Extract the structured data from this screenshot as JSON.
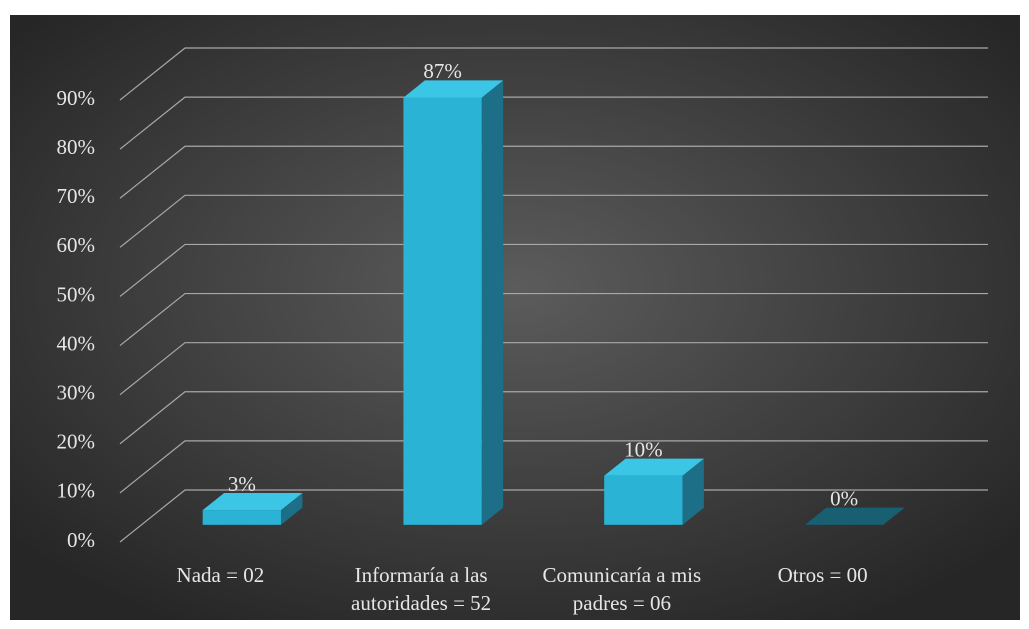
{
  "chart_data": {
    "type": "bar3d",
    "categories": [
      "Nada = 02",
      "Informaría a las autoridades = 52",
      "Comunicaría a mis padres = 06",
      "Otros = 00"
    ],
    "values": [
      3,
      87,
      10,
      0
    ],
    "value_labels": [
      "3%",
      "87%",
      "10%",
      "0%"
    ],
    "color": "#2bb3d6",
    "ylim": [
      0,
      90
    ],
    "yticks": [
      {
        "value": 0,
        "label": "0%"
      },
      {
        "value": 10,
        "label": "10%"
      },
      {
        "value": 20,
        "label": "20%"
      },
      {
        "value": 30,
        "label": "30%"
      },
      {
        "value": 40,
        "label": "40%"
      },
      {
        "value": 50,
        "label": "50%"
      },
      {
        "value": 60,
        "label": "60%"
      },
      {
        "value": 70,
        "label": "70%"
      },
      {
        "value": 80,
        "label": "80%"
      },
      {
        "value": 90,
        "label": "90%"
      }
    ],
    "grid": true
  }
}
